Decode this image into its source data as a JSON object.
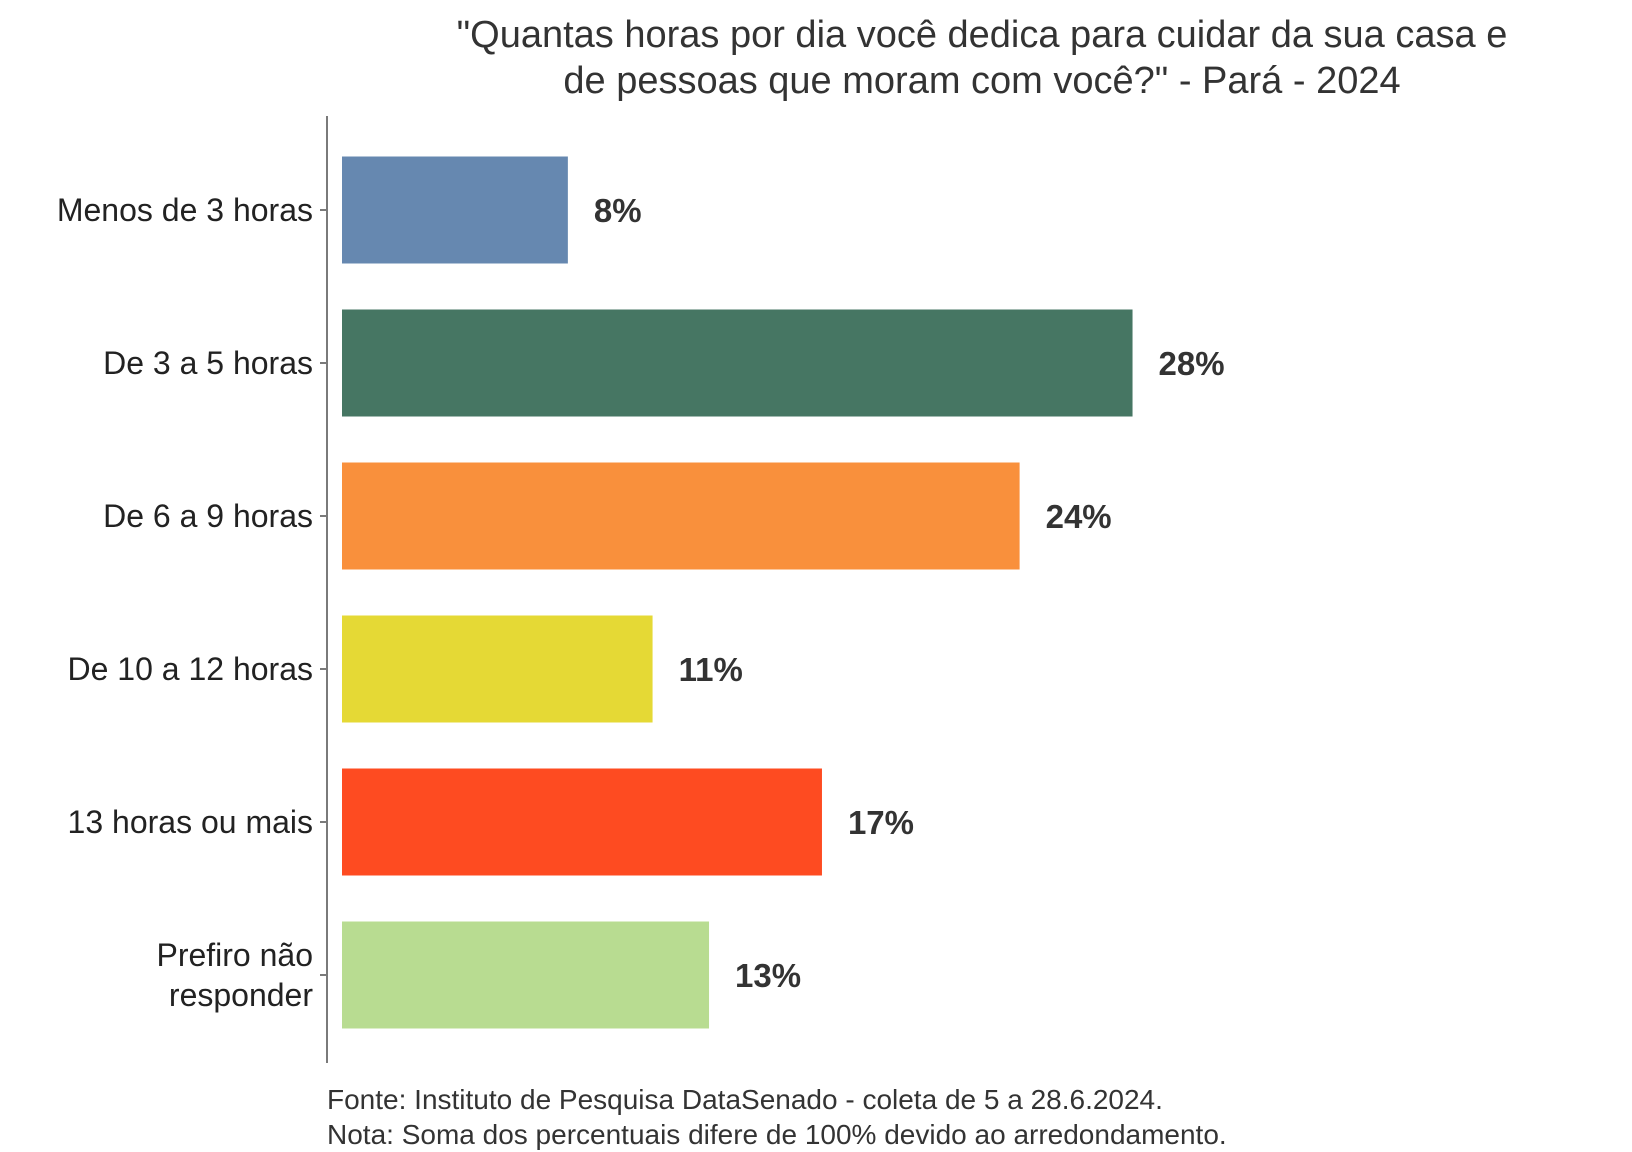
{
  "chart_data": {
    "type": "bar",
    "orientation": "horizontal",
    "title_lines": [
      "\"Quantas horas por dia você dedica para cuidar da sua casa e",
      "de pessoas que moram com você?\" - Pará - 2024"
    ],
    "categories": [
      [
        "Menos de 3 horas"
      ],
      [
        "De 3 a 5 horas"
      ],
      [
        "De 6 a 9 horas"
      ],
      [
        "De 10 a 12 horas"
      ],
      [
        "13 horas ou mais"
      ],
      [
        "Prefiro não",
        "responder"
      ]
    ],
    "values": [
      8,
      28,
      24,
      11,
      17,
      13
    ],
    "value_labels": [
      "8%",
      "28%",
      "24%",
      "11%",
      "17%",
      "13%"
    ],
    "colors": [
      "#6688b0",
      "#467663",
      "#f9903c",
      "#e5d935",
      "#fe4b21",
      "#b8dc91"
    ],
    "xlim": [
      0,
      30
    ],
    "grid": false,
    "notes": [
      "Fonte: Instituto de Pesquisa DataSenado - coleta de 5 a 28.6.2024.",
      "Nota: Soma dos percentuais difere de 100% devido ao arredondamento."
    ]
  }
}
